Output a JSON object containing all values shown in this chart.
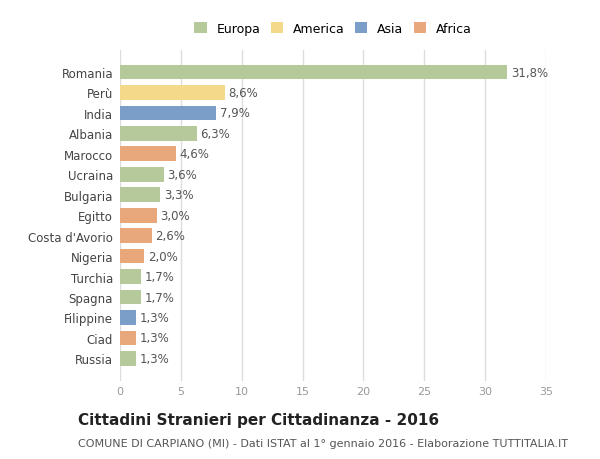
{
  "countries": [
    "Romania",
    "Perù",
    "India",
    "Albania",
    "Marocco",
    "Ucraina",
    "Bulgaria",
    "Egitto",
    "Costa d'Avorio",
    "Nigeria",
    "Turchia",
    "Spagna",
    "Filippine",
    "Ciad",
    "Russia"
  ],
  "values": [
    31.8,
    8.6,
    7.9,
    6.3,
    4.6,
    3.6,
    3.3,
    3.0,
    2.6,
    2.0,
    1.7,
    1.7,
    1.3,
    1.3,
    1.3
  ],
  "labels": [
    "31,8%",
    "8,6%",
    "7,9%",
    "6,3%",
    "4,6%",
    "3,6%",
    "3,3%",
    "3,0%",
    "2,6%",
    "2,0%",
    "1,7%",
    "1,7%",
    "1,3%",
    "1,3%",
    "1,3%"
  ],
  "continents": [
    "Europa",
    "America",
    "Asia",
    "Europa",
    "Africa",
    "Europa",
    "Europa",
    "Africa",
    "Africa",
    "Africa",
    "Europa",
    "Europa",
    "Asia",
    "Africa",
    "Europa"
  ],
  "colors": {
    "Europa": "#b5c99a",
    "America": "#f5d98b",
    "Asia": "#7b9ec9",
    "Africa": "#e8a87c"
  },
  "xlim": [
    0,
    35
  ],
  "xticks": [
    0,
    5,
    10,
    15,
    20,
    25,
    30,
    35
  ],
  "title": "Cittadini Stranieri per Cittadinanza - 2016",
  "subtitle": "COMUNE DI CARPIANO (MI) - Dati ISTAT al 1° gennaio 2016 - Elaborazione TUTTITALIA.IT",
  "bg_color": "#ffffff",
  "grid_color": "#dddddd",
  "label_color": "#555555",
  "tick_color": "#999999",
  "title_fontsize": 11,
  "subtitle_fontsize": 8,
  "label_fontsize": 8.5,
  "ytick_fontsize": 8.5,
  "xtick_fontsize": 8
}
